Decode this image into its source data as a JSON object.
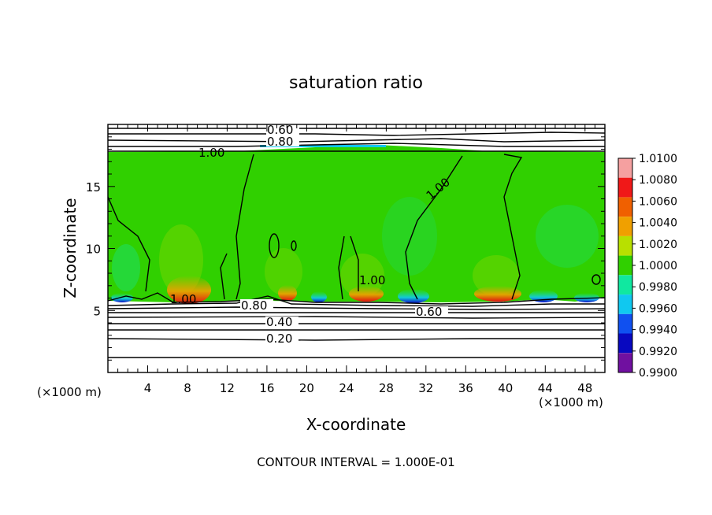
{
  "chart_data": {
    "type": "heatmap",
    "title": "saturation ratio",
    "xlabel": "X-coordinate",
    "ylabel": "Z-coordinate",
    "x_unit": "(×1000 m)",
    "xlim": [
      0,
      50
    ],
    "ylim": [
      0,
      20
    ],
    "xticks": [
      4,
      8,
      12,
      16,
      20,
      24,
      28,
      32,
      36,
      40,
      44,
      48
    ],
    "yticks": [
      5,
      10,
      15
    ],
    "contour_interval": "CONTOUR INTERVAL = 1.000E-01",
    "contour_labels": [
      "0.60",
      "0.80",
      "1.00",
      "1.00",
      "1.00",
      "1.00",
      "0.80",
      "0.60",
      "0.40",
      "0.20"
    ],
    "colorbar": {
      "levels": [
        "1.0100",
        "1.0080",
        "1.0060",
        "1.0040",
        "1.0020",
        "1.0000",
        "0.9980",
        "0.9960",
        "0.9940",
        "0.9920",
        "0.9900"
      ],
      "colors": [
        "#f5a0a0",
        "#f01818",
        "#f06000",
        "#f0a000",
        "#b8e000",
        "#30d000",
        "#10e8a0",
        "#10c8f0",
        "#1050f0",
        "#0808c0",
        "#7010a0"
      ]
    }
  }
}
